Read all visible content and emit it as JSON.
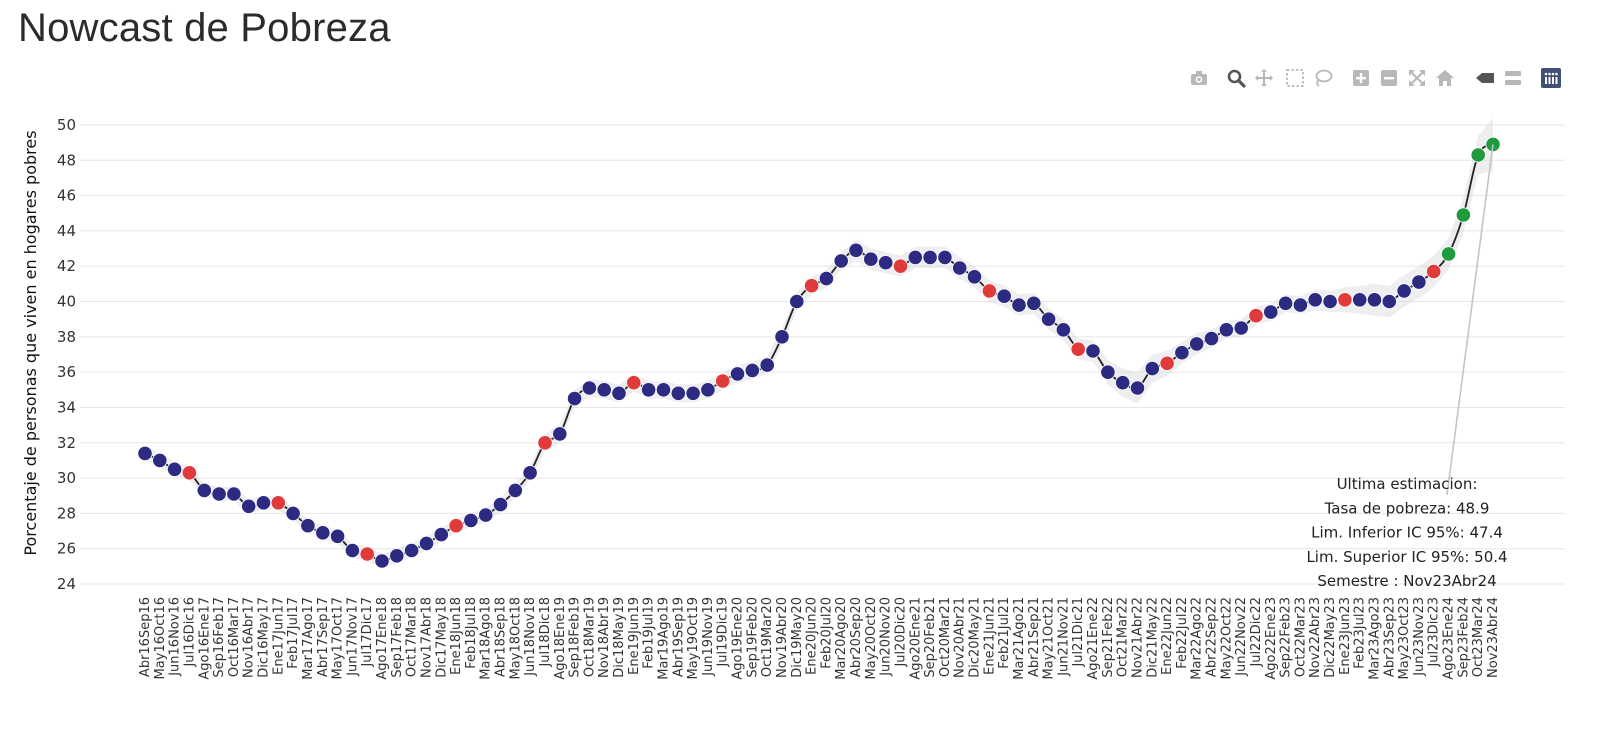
{
  "page": {
    "title": "Nowcast de Pobreza"
  },
  "modebar": {
    "buttons": [
      {
        "name": "camera-icon",
        "label": "Download plot as png"
      },
      {
        "name": "zoom-icon",
        "label": "Zoom"
      },
      {
        "name": "pan-icon",
        "label": "Pan"
      },
      {
        "name": "box-select-icon",
        "label": "Box Select"
      },
      {
        "name": "lasso-select-icon",
        "label": "Lasso Select"
      },
      {
        "name": "zoom-in-icon",
        "label": "Zoom in"
      },
      {
        "name": "zoom-out-icon",
        "label": "Zoom out"
      },
      {
        "name": "autoscale-icon",
        "label": "Autoscale"
      },
      {
        "name": "reset-axes-icon",
        "label": "Reset axes"
      },
      {
        "name": "hover-closest-icon",
        "label": "Show closest data on hover"
      },
      {
        "name": "hover-compare-icon",
        "label": "Compare data on hover"
      },
      {
        "name": "plotly-logo-icon",
        "label": "Produced with Plotly"
      }
    ],
    "colors": {
      "icon": "#b8b8b8",
      "active": "#555555",
      "logo": "#3f4f75"
    }
  },
  "chart_data": {
    "type": "line",
    "title": "",
    "xlabel": "",
    "ylabel": "Porcentaje de personas que viven en hogares pobres",
    "ylim": [
      24,
      50
    ],
    "yticks": [
      24,
      26,
      28,
      30,
      32,
      34,
      36,
      38,
      40,
      42,
      44,
      46,
      48,
      50
    ],
    "grid": true,
    "categories": [
      "Abr16Sep16",
      "May16Oct16",
      "Jun16Nov16",
      "Jul16Dic16",
      "Ago16Ene17",
      "Sep16Feb17",
      "Oct16Mar17",
      "Nov16Abr17",
      "Dic16May17",
      "Ene17Jun17",
      "Feb17Jul17",
      "Mar17Ago17",
      "Abr17Sep17",
      "May17Oct17",
      "Jun17Nov17",
      "Jul17Dic17",
      "Ago17Ene18",
      "Sep17Feb18",
      "Oct17Mar18",
      "Nov17Abr18",
      "Dic17May18",
      "Ene18Jun18",
      "Feb18Jul18",
      "Mar18Ago18",
      "Abr18Sep18",
      "May18Oct18",
      "Jun18Nov18",
      "Jul18Dic18",
      "Ago18Ene19",
      "Sep18Feb19",
      "Oct18Mar19",
      "Nov18Abr19",
      "Dic18May19",
      "Ene19Jun19",
      "Feb19Jul19",
      "Mar19Ago19",
      "Abr19Sep19",
      "May19Oct19",
      "Jun19Nov19",
      "Jul19Dic19",
      "Ago19Ene20",
      "Sep19Feb20",
      "Oct19Mar20",
      "Nov19Abr20",
      "Dic19May20",
      "Ene20Jun20",
      "Feb20Jul20",
      "Mar20Ago20",
      "Abr20Sep20",
      "May20Oct20",
      "Jun20Nov20",
      "Jul20Dic20",
      "Ago20Ene21",
      "Sep20Feb21",
      "Oct20Mar21",
      "Nov20Abr21",
      "Dic20May21",
      "Ene21Jun21",
      "Feb21Jul21",
      "Mar21Ago21",
      "Abr21Sep21",
      "May21Oct21",
      "Jun21Nov21",
      "Jul21Dic21",
      "Ago21Ene22",
      "Sep21Feb22",
      "Oct21Mar22",
      "Nov21Abr22",
      "Dic21May22",
      "Ene22Jun22",
      "Feb22Jul22",
      "Mar22Ago22",
      "Abr22Sep22",
      "May22Oct22",
      "Jun22Nov22",
      "Jul22Dic22",
      "Ago22Ene23",
      "Sep22Feb23",
      "Oct22Mar23",
      "Nov22Abr23",
      "Dic22May23",
      "Ene23Jun23",
      "Feb23Jul23",
      "Mar23Ago23",
      "Abr23Sep23",
      "May23Oct23",
      "Jun23Nov23",
      "Jul23Dic23",
      "Ago23Ene24",
      "Sep23Feb24",
      "Oct23Mar24",
      "Nov23Abr24"
    ],
    "values": [
      31.4,
      31.0,
      30.5,
      30.3,
      29.3,
      29.1,
      29.1,
      28.4,
      28.6,
      28.6,
      28.0,
      27.3,
      26.9,
      26.7,
      25.9,
      25.7,
      25.3,
      25.6,
      25.9,
      26.3,
      26.8,
      27.3,
      27.6,
      27.9,
      28.5,
      29.3,
      30.3,
      32.0,
      32.5,
      34.5,
      35.1,
      35.0,
      34.8,
      35.4,
      35.0,
      35.0,
      34.8,
      34.8,
      35.0,
      35.5,
      35.9,
      36.1,
      36.4,
      38.0,
      40.0,
      40.9,
      41.3,
      42.3,
      42.9,
      42.4,
      42.2,
      42.0,
      42.5,
      42.5,
      42.5,
      41.9,
      41.4,
      40.6,
      40.3,
      39.8,
      39.9,
      39.0,
      38.4,
      37.3,
      37.2,
      36.0,
      35.4,
      35.1,
      36.2,
      36.5,
      37.1,
      37.6,
      37.9,
      38.4,
      38.5,
      39.2,
      39.4,
      39.9,
      39.8,
      40.1,
      40.0,
      40.1,
      40.1,
      40.1,
      40.0,
      40.6,
      41.1,
      41.7,
      42.7,
      44.9,
      48.3,
      48.9
    ],
    "lower": [
      31.0,
      30.6,
      30.1,
      29.9,
      28.9,
      28.7,
      28.7,
      28.0,
      28.2,
      28.2,
      27.6,
      26.9,
      26.5,
      26.3,
      25.5,
      25.3,
      24.9,
      25.2,
      25.5,
      25.9,
      26.4,
      26.9,
      27.2,
      27.5,
      28.1,
      28.9,
      29.9,
      31.5,
      32.0,
      34.0,
      34.6,
      34.5,
      34.3,
      34.9,
      34.5,
      34.5,
      34.3,
      34.3,
      34.5,
      35.0,
      35.4,
      35.6,
      35.9,
      37.5,
      39.5,
      40.4,
      40.8,
      41.8,
      42.3,
      41.8,
      41.6,
      41.4,
      41.9,
      41.9,
      41.9,
      41.3,
      40.8,
      40.0,
      39.7,
      39.2,
      39.3,
      38.4,
      37.8,
      36.7,
      36.6,
      35.3,
      34.6,
      34.2,
      35.4,
      35.8,
      36.5,
      37.0,
      37.4,
      37.9,
      38.0,
      38.7,
      38.9,
      39.4,
      39.3,
      39.5,
      39.4,
      39.4,
      39.3,
      39.2,
      39.1,
      39.7,
      40.2,
      40.8,
      41.8,
      43.9,
      47.2,
      47.4
    ],
    "upper": [
      31.8,
      31.4,
      30.9,
      30.7,
      29.7,
      29.5,
      29.5,
      28.8,
      29.0,
      29.0,
      28.4,
      27.7,
      27.3,
      27.1,
      26.3,
      26.1,
      25.7,
      26.0,
      26.3,
      26.7,
      27.2,
      27.7,
      28.0,
      28.3,
      28.9,
      29.7,
      30.7,
      32.5,
      33.0,
      35.0,
      35.6,
      35.5,
      35.3,
      35.9,
      35.5,
      35.5,
      35.3,
      35.3,
      35.5,
      36.0,
      36.4,
      36.6,
      36.9,
      38.5,
      40.5,
      41.4,
      41.8,
      42.8,
      43.5,
      43.0,
      42.8,
      42.6,
      43.1,
      43.1,
      43.1,
      42.5,
      42.0,
      41.2,
      40.9,
      40.4,
      40.5,
      39.6,
      39.0,
      37.9,
      37.8,
      36.7,
      36.2,
      36.0,
      37.0,
      37.2,
      37.7,
      38.2,
      38.4,
      38.9,
      39.0,
      39.7,
      39.9,
      40.4,
      40.3,
      40.7,
      40.6,
      40.8,
      40.9,
      41.0,
      40.9,
      41.5,
      42.0,
      42.6,
      43.6,
      45.9,
      49.4,
      50.4
    ],
    "red_points": [
      "Jul16Dic16",
      "Ene17Jun17",
      "Jul17Dic17",
      "Ene18Jun18",
      "Jul18Dic18",
      "Ene19Jun19",
      "Jul19Dic19",
      "Ene20Jun20",
      "Jul20Dic20",
      "Ene21Jun21",
      "Jul21Dic21",
      "Ene22Jun22",
      "Jul22Dic22",
      "Ene23Jun23",
      "Jul23Dic23"
    ],
    "green_points": [
      "Ago23Ene24",
      "Sep23Feb24",
      "Oct23Mar24",
      "Nov23Abr24"
    ],
    "colors": {
      "default": "#2d2a82",
      "red": "#e03a3a",
      "green": "#1f9a3c",
      "line": "#222222",
      "band": "#d9d9df"
    },
    "annotation": {
      "target": "Nov23Abr24",
      "lines": [
        "Ultima estimacion:",
        "Tasa de pobreza:  48.9",
        "Lim. Inferior IC 95%:  47.4",
        "Lim. Superior IC 95%:  50.4",
        "Semestre : Nov23Abr24"
      ]
    }
  }
}
